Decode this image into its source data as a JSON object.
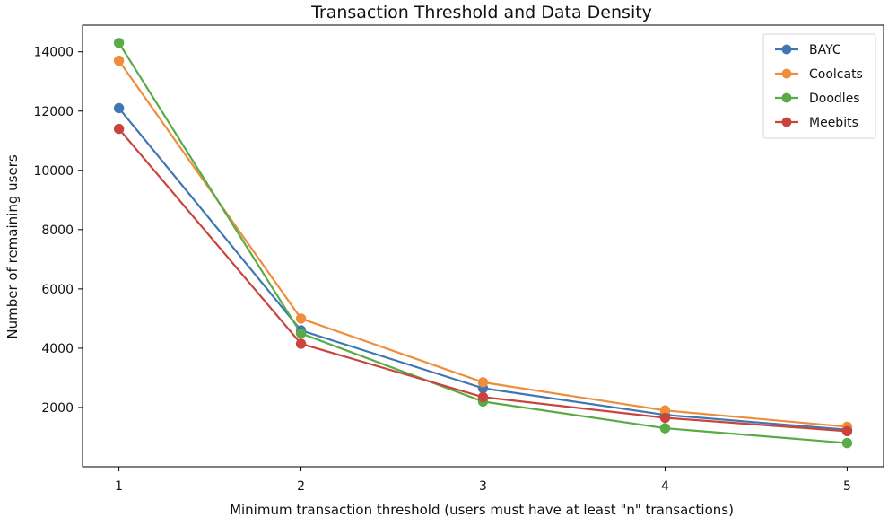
{
  "chart_data": {
    "type": "line",
    "title": "Transaction Threshold and Data Density",
    "xlabel": "Minimum transaction threshold (users must have at least \"n\" transactions)",
    "ylabel": "Number of remaining users",
    "x": [
      1,
      2,
      3,
      4,
      5
    ],
    "x_tick_labels": [
      "1",
      "2",
      "3",
      "4",
      "5"
    ],
    "y_ticks": [
      2000,
      4000,
      6000,
      8000,
      10000,
      12000,
      14000
    ],
    "y_tick_labels": [
      "2000",
      "4000",
      "6000",
      "8000",
      "10000",
      "12000",
      "14000"
    ],
    "xlim": [
      0.8,
      5.2
    ],
    "ylim": [
      0,
      14900
    ],
    "grid": false,
    "legend_position": "top-right",
    "series": [
      {
        "name": "BAYC",
        "color": "#3f76b3",
        "values": [
          12100,
          4600,
          2650,
          1750,
          1250
        ]
      },
      {
        "name": "Coolcats",
        "color": "#ee8d3b",
        "values": [
          13700,
          5000,
          2850,
          1900,
          1350
        ]
      },
      {
        "name": "Doodles",
        "color": "#59ab45",
        "values": [
          14300,
          4500,
          2200,
          1300,
          800
        ]
      },
      {
        "name": "Meebits",
        "color": "#c8443d",
        "values": [
          11400,
          4150,
          2350,
          1650,
          1200
        ]
      }
    ]
  }
}
